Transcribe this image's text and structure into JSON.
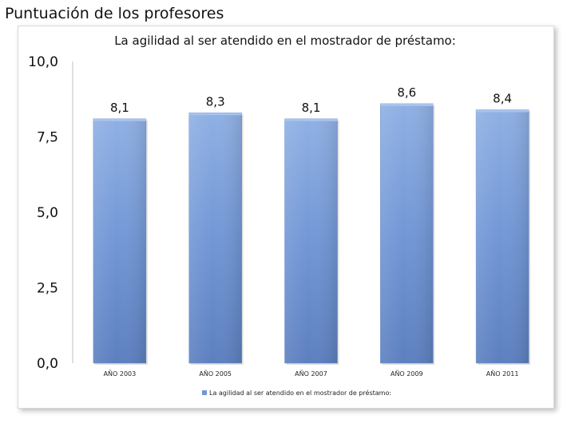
{
  "page": {
    "title": "Puntuación de los profesores"
  },
  "chart_data": {
    "type": "bar",
    "title": "La agilidad al ser atendido en el mostrador de préstamo:",
    "categories": [
      "AÑO 2003",
      "AÑO 2005",
      "AÑO 2007",
      "AÑO 2009",
      "AÑO 2011"
    ],
    "series": [
      {
        "name": "La agilidad al ser atendido en el mostrador de préstamo:",
        "values": [
          8.1,
          8.3,
          8.1,
          8.6,
          8.4
        ]
      }
    ],
    "data_labels": [
      "8,1",
      "8,3",
      "8,1",
      "8,6",
      "8,4"
    ],
    "yticks": [
      0,
      2.5,
      5,
      7.5,
      10
    ],
    "ytick_labels": [
      "0,0",
      "2,5",
      "5,0",
      "7,5",
      "10,0"
    ],
    "ylim": [
      0,
      10
    ],
    "xlabel": "",
    "ylabel": "",
    "legend_position": "bottom",
    "grid": false,
    "colors": {
      "bar_top": "#8fb0e4",
      "bar_mid": "#7297d6",
      "bar_bottom": "#5c7fbf",
      "axis": "#c0c0c0"
    }
  }
}
